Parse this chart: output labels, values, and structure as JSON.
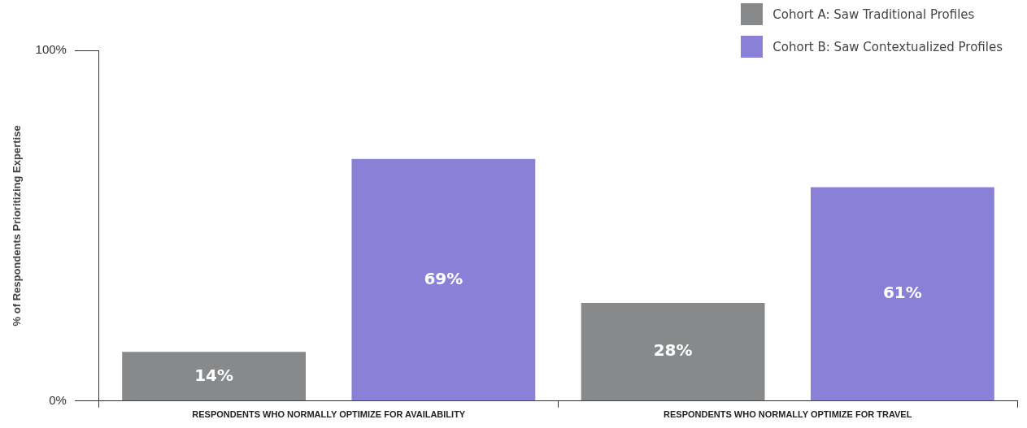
{
  "chart_data": {
    "type": "bar",
    "ylabel": "% of Respondents Prioritizing Expertise",
    "categories": [
      "RESPONDENTS WHO NORMALLY OPTIMIZE FOR AVAILABILITY",
      "RESPONDENTS WHO NORMALLY OPTIMIZE FOR TRAVEL"
    ],
    "series": [
      {
        "name": "Cohort A: Saw Traditional Profiles",
        "color": "#87898b",
        "values": [
          14,
          28
        ],
        "value_labels": [
          "14%",
          "28%"
        ]
      },
      {
        "name": "Cohort B: Saw Contextualized Profiles",
        "color": "#8a80d8",
        "values": [
          69,
          61
        ],
        "value_labels": [
          "69%",
          "61%"
        ]
      }
    ],
    "ylim": [
      0,
      100
    ],
    "yticks": [
      {
        "value": 0,
        "label": "0%"
      },
      {
        "value": 100,
        "label": "100%"
      }
    ],
    "grid": false,
    "legend": "top right"
  }
}
